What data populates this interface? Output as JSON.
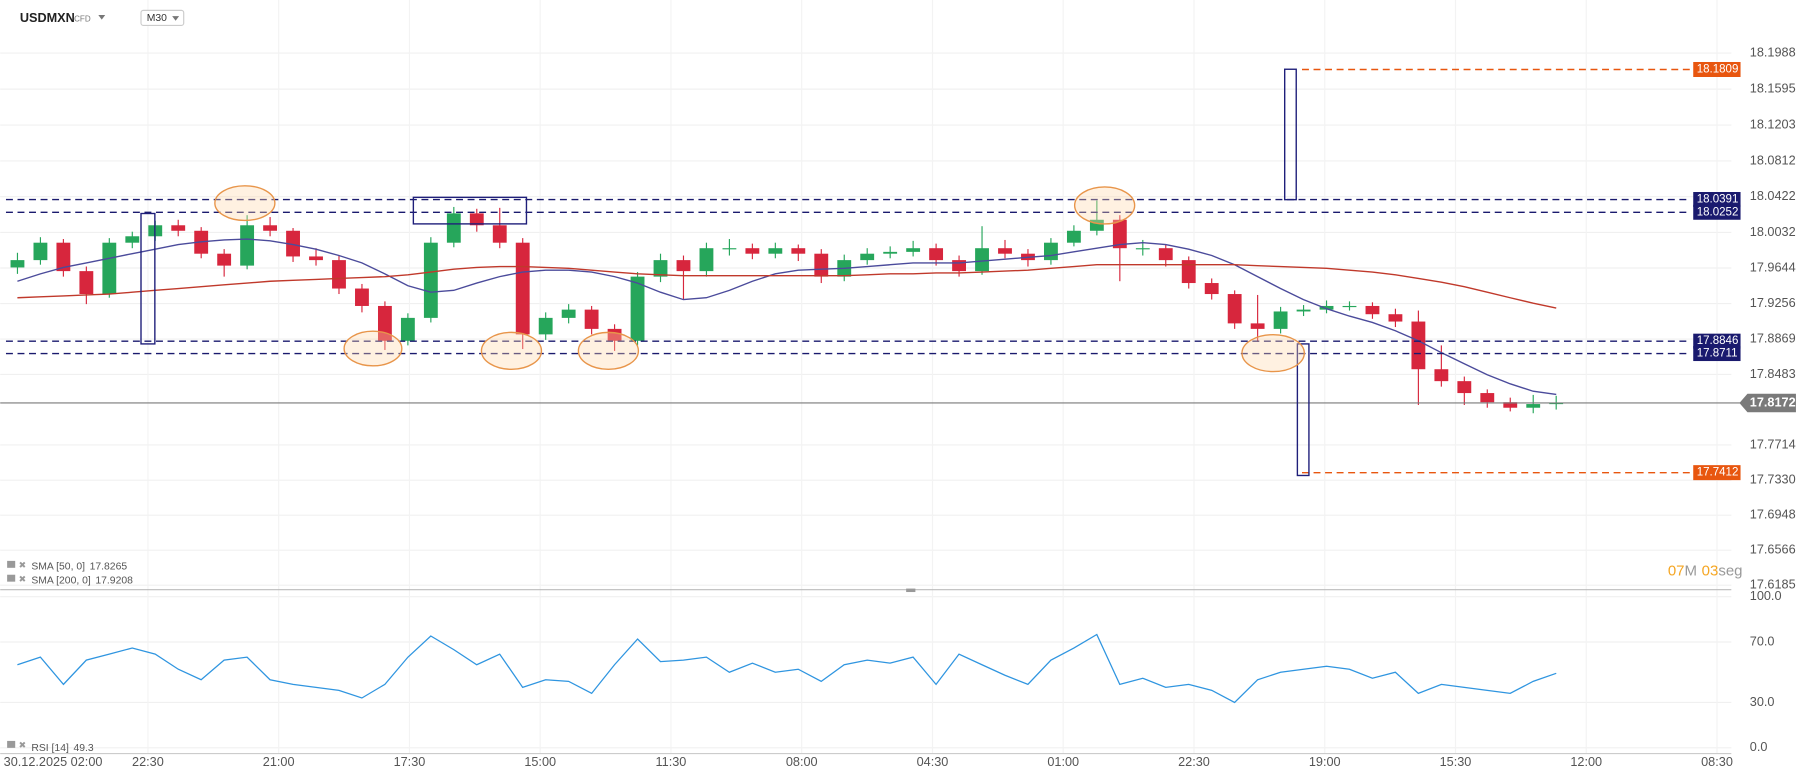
{
  "chart_data": [
    {
      "type": "candlestick",
      "title": "USDMXN",
      "instrument_type": "CFD",
      "timeframe": "M30",
      "up_color": "#26a65b",
      "down_color": "#d7263d",
      "grid": true,
      "ylim": [
        17.6135,
        18.2567
      ],
      "yticks": [
        18.1988,
        18.1595,
        18.1203,
        18.0812,
        18.0422,
        18.0032,
        17.9644,
        17.9256,
        17.8869,
        17.8483,
        17.7714,
        {
          "value": 17.733,
          "label": "17.7330"
        },
        17.6948,
        17.6566,
        17.6185
      ],
      "open": [
        17.965,
        17.973,
        17.992,
        17.961,
        17.936,
        17.992,
        17.999,
        18.011,
        18.005,
        17.98,
        17.967,
        18.011,
        18.005,
        17.977,
        17.973,
        17.942,
        17.923,
        17.885,
        17.91,
        17.992,
        18.024,
        18.011,
        17.992,
        17.892,
        17.91,
        17.919,
        17.898,
        17.885,
        17.955,
        17.973,
        17.961,
        17.986,
        17.986,
        17.98,
        17.986,
        17.98,
        17.955,
        17.973,
        17.98,
        17.982,
        17.986,
        17.973,
        17.961,
        17.986,
        17.98,
        17.973,
        17.992,
        18.005,
        18.017,
        17.986,
        17.986,
        17.973,
        17.948,
        17.936,
        17.904,
        17.898,
        17.917,
        17.919,
        17.923,
        17.923,
        17.914,
        17.906,
        17.854,
        17.841,
        17.828,
        17.818,
        17.812,
        17.816
      ],
      "high": [
        17.981,
        17.998,
        17.996,
        17.966,
        17.997,
        18.004,
        18.016,
        18.017,
        18.009,
        17.985,
        18.022,
        18.02,
        18.008,
        17.986,
        17.978,
        17.947,
        17.928,
        17.915,
        17.998,
        18.031,
        18.029,
        18.03,
        17.997,
        17.916,
        17.925,
        17.923,
        17.903,
        17.96,
        17.98,
        17.978,
        17.992,
        17.996,
        17.991,
        17.992,
        17.99,
        17.985,
        17.979,
        17.986,
        17.988,
        17.994,
        17.991,
        17.978,
        18.01,
        17.995,
        17.985,
        17.997,
        18.011,
        18.038,
        18.022,
        17.995,
        17.99,
        17.977,
        17.953,
        17.94,
        17.935,
        17.922,
        17.924,
        17.929,
        17.928,
        17.927,
        17.92,
        17.918,
        17.88,
        17.846,
        17.832,
        17.823,
        17.826,
        17.825
      ],
      "low": [
        17.958,
        17.968,
        17.955,
        17.925,
        17.932,
        17.986,
        17.994,
        17.999,
        17.975,
        17.955,
        17.963,
        17.999,
        17.971,
        17.967,
        17.936,
        17.916,
        17.875,
        17.88,
        17.905,
        17.987,
        18.004,
        17.986,
        17.876,
        17.886,
        17.904,
        17.892,
        17.874,
        17.88,
        17.949,
        17.93,
        17.955,
        17.978,
        17.974,
        17.975,
        17.972,
        17.948,
        17.95,
        17.968,
        17.975,
        17.977,
        17.967,
        17.955,
        17.957,
        17.975,
        17.966,
        17.968,
        17.988,
        18.0,
        17.95,
        17.978,
        17.966,
        17.942,
        17.93,
        17.898,
        17.884,
        17.893,
        17.912,
        17.915,
        17.918,
        17.909,
        17.9,
        17.815,
        17.835,
        17.815,
        17.812,
        17.808,
        17.806,
        17.81
      ],
      "close": [
        17.973,
        17.992,
        17.961,
        17.936,
        17.992,
        17.999,
        18.011,
        18.005,
        17.98,
        17.967,
        18.011,
        18.005,
        17.977,
        17.973,
        17.942,
        17.923,
        17.885,
        17.91,
        17.992,
        18.024,
        18.011,
        17.992,
        17.892,
        17.91,
        17.919,
        17.898,
        17.885,
        17.955,
        17.973,
        17.961,
        17.986,
        17.986,
        17.98,
        17.986,
        17.98,
        17.955,
        17.973,
        17.98,
        17.982,
        17.986,
        17.973,
        17.961,
        17.986,
        17.98,
        17.973,
        17.992,
        18.005,
        18.017,
        17.986,
        17.986,
        17.973,
        17.948,
        17.936,
        17.904,
        17.898,
        17.917,
        17.919,
        17.923,
        17.923,
        17.914,
        17.906,
        17.854,
        17.841,
        17.828,
        17.818,
        17.812,
        17.816,
        17.8172
      ],
      "series": [
        {
          "name": "SMA [50, 0]",
          "color": "#4b4b9b",
          "values": [
            17.95,
            17.958,
            17.965,
            17.97,
            17.975,
            17.98,
            17.985,
            17.99,
            17.993,
            17.995,
            17.996,
            17.994,
            17.99,
            17.985,
            17.978,
            17.97,
            17.958,
            17.945,
            17.938,
            17.94,
            17.948,
            17.955,
            17.96,
            17.962,
            17.962,
            17.96,
            17.955,
            17.948,
            17.938,
            17.93,
            17.932,
            17.94,
            17.95,
            17.958,
            17.962,
            17.963,
            17.964,
            17.966,
            17.968,
            17.97,
            17.97,
            17.97,
            17.972,
            17.974,
            17.976,
            17.978,
            17.982,
            17.986,
            17.99,
            17.992,
            17.99,
            17.985,
            17.978,
            17.968,
            17.955,
            17.942,
            17.93,
            17.92,
            17.912,
            17.905,
            17.896,
            17.885,
            17.872,
            17.86,
            17.848,
            17.838,
            17.83,
            17.8265
          ]
        },
        {
          "name": "SMA [200, 0]",
          "color": "#c0392b",
          "values": [
            17.932,
            17.933,
            17.934,
            17.935,
            17.936,
            17.938,
            17.94,
            17.942,
            17.944,
            17.946,
            17.948,
            17.95,
            17.951,
            17.952,
            17.953,
            17.954,
            17.955,
            17.957,
            17.96,
            17.963,
            17.965,
            17.966,
            17.966,
            17.965,
            17.964,
            17.962,
            17.96,
            17.958,
            17.957,
            17.956,
            17.956,
            17.956,
            17.956,
            17.956,
            17.956,
            17.956,
            17.956,
            17.957,
            17.958,
            17.958,
            17.959,
            17.959,
            17.96,
            17.961,
            17.962,
            17.964,
            17.966,
            17.968,
            17.968,
            17.968,
            17.968,
            17.968,
            17.968,
            17.968,
            17.967,
            17.966,
            17.965,
            17.964,
            17.962,
            17.96,
            17.957,
            17.953,
            17.949,
            17.944,
            17.938,
            17.932,
            17.926,
            17.9208
          ]
        }
      ],
      "levels": [
        {
          "value": 18.1809,
          "color": "#e8560f"
        },
        {
          "value": 18.0391,
          "color": "#1a1a6e"
        },
        {
          "value": 18.0252,
          "color": "#1a1a6e"
        },
        {
          "value": 17.8846,
          "color": "#1a1a6e"
        },
        {
          "value": 17.8711,
          "color": "#1a1a6e"
        },
        {
          "value": 17.7412,
          "color": "#e8560f"
        }
      ],
      "current_price_color": "#7a7a7a",
      "timer_minutes": "07",
      "timer_minutes_unit": "M",
      "timer_seconds": "03",
      "timer_seconds_unit": "seg"
    },
    {
      "type": "line",
      "ylim": [
        0,
        100
      ],
      "yticks": [
        {
          "value": 100,
          "label": "100.0"
        },
        {
          "value": 70,
          "label": "70.0"
        },
        {
          "value": 30,
          "label": "30.0"
        },
        {
          "value": 0,
          "label": "0.0"
        }
      ],
      "series": [
        {
          "name": "RSI [14]",
          "color": "#2f95e0",
          "values": [
            55,
            60,
            42,
            58,
            62,
            66,
            62,
            52,
            45,
            58,
            60,
            45,
            42,
            40,
            38,
            33,
            42,
            60,
            74,
            65,
            55,
            62,
            40,
            45,
            44,
            36,
            55,
            72,
            57,
            58,
            60,
            50,
            56,
            50,
            52,
            44,
            55,
            58,
            56,
            60,
            42,
            62,
            55,
            48,
            42,
            58,
            66,
            75,
            42,
            46,
            40,
            42,
            38,
            30,
            45,
            50,
            52,
            54,
            52,
            46,
            50,
            36,
            42,
            40,
            38,
            36,
            44,
            49.3
          ]
        }
      ],
      "x_axis_labels": [
        "30.12.2025  02:00",
        "22:30",
        "21:00",
        "17:30",
        "15:00",
        "11:30",
        "08:00",
        "04:30",
        "01:00",
        "22:30",
        "19:00",
        "15:30",
        "12:00",
        "08:30"
      ]
    }
  ]
}
